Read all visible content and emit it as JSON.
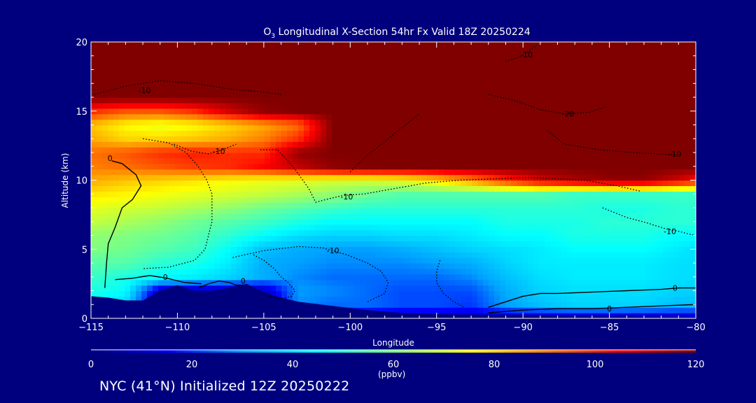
{
  "chart_data": {
    "type": "heatmap",
    "title": {
      "prefix": "O",
      "subscript": "3",
      "rest": " Longitudinal X-Section 54hr  Fx Valid 18Z 20250224"
    },
    "xlabel": "Longitude",
    "ylabel": "Altitude (km)",
    "xlim": [
      -115,
      -80
    ],
    "ylim": [
      0,
      20
    ],
    "x_ticks": [
      -115,
      -110,
      -105,
      -100,
      -95,
      -90,
      -85,
      -80
    ],
    "x_tick_labels": [
      "−115",
      "−110",
      "−105",
      "−100",
      "−95",
      "−90",
      "−85",
      "−80"
    ],
    "y_ticks": [
      0,
      5,
      10,
      15,
      20
    ],
    "y_tick_labels": [
      "0",
      "5",
      "10",
      "15",
      "20"
    ],
    "colorbar": {
      "min": 0,
      "max": 120,
      "ticks": [
        0,
        20,
        40,
        60,
        80,
        100,
        120
      ],
      "tick_labels": [
        "0",
        "20",
        "40",
        "60",
        "80",
        "100",
        "120"
      ],
      "units": "(ppbv)",
      "colormap": [
        "#00007f",
        "#0000ff",
        "#00a0ff",
        "#00ffff",
        "#80ff80",
        "#ffff00",
        "#ff8000",
        "#ff0000",
        "#800000"
      ]
    },
    "field": {
      "description_units": "ppbv",
      "x": [
        -115,
        -113,
        -111,
        -109,
        -107,
        -105,
        -103,
        -101,
        -99,
        -97,
        -95,
        -93,
        -91,
        -89,
        -87,
        -85,
        -83,
        -81,
        -80
      ],
      "y": [
        0,
        1,
        2,
        3,
        4,
        5,
        6,
        7,
        8,
        9,
        10,
        11,
        12,
        13,
        14,
        15,
        16,
        17,
        18,
        19,
        20
      ],
      "note_rows": "values[j][i] for altitude y[j] and longitude x[i]",
      "values": [
        [
          5,
          5,
          5,
          5,
          5,
          5,
          5,
          5,
          5,
          5,
          5,
          5,
          5,
          5,
          5,
          5,
          5,
          5,
          5
        ],
        [
          45,
          38,
          5,
          5,
          5,
          5,
          28,
          25,
          25,
          22,
          22,
          20,
          30,
          35,
          38,
          38,
          38,
          35,
          35
        ],
        [
          48,
          45,
          5,
          5,
          5,
          5,
          30,
          28,
          25,
          22,
          22,
          22,
          32,
          38,
          40,
          40,
          40,
          38,
          38
        ],
        [
          52,
          48,
          45,
          42,
          38,
          32,
          28,
          25,
          25,
          25,
          25,
          28,
          35,
          40,
          42,
          42,
          42,
          40,
          40
        ],
        [
          55,
          55,
          50,
          48,
          42,
          32,
          30,
          28,
          28,
          28,
          30,
          32,
          38,
          42,
          42,
          42,
          42,
          40,
          40
        ],
        [
          60,
          58,
          55,
          52,
          45,
          35,
          32,
          30,
          30,
          32,
          35,
          38,
          40,
          42,
          45,
          45,
          45,
          42,
          40
        ],
        [
          62,
          60,
          58,
          55,
          50,
          45,
          40,
          38,
          38,
          40,
          40,
          42,
          45,
          45,
          48,
          48,
          48,
          45,
          45
        ],
        [
          68,
          65,
          62,
          58,
          55,
          52,
          48,
          45,
          45,
          45,
          45,
          45,
          48,
          48,
          48,
          50,
          50,
          50,
          50
        ],
        [
          72,
          70,
          68,
          65,
          62,
          58,
          55,
          52,
          50,
          50,
          50,
          50,
          50,
          50,
          50,
          48,
          48,
          50,
          50
        ],
        [
          78,
          76,
          74,
          72,
          70,
          68,
          65,
          62,
          58,
          55,
          55,
          55,
          55,
          55,
          52,
          52,
          52,
          52,
          52
        ],
        [
          85,
          82,
          80,
          78,
          75,
          73,
          72,
          70,
          70,
          72,
          78,
          88,
          100,
          110,
          115,
          118,
          118,
          110,
          105
        ],
        [
          90,
          92,
          95,
          98,
          100,
          105,
          112,
          118,
          120,
          120,
          120,
          120,
          120,
          120,
          120,
          120,
          120,
          120,
          120
        ],
        [
          92,
          95,
          100,
          102,
          100,
          100,
          118,
          120,
          120,
          120,
          120,
          120,
          120,
          120,
          120,
          120,
          120,
          120,
          120
        ],
        [
          85,
          80,
          80,
          82,
          85,
          90,
          100,
          120,
          120,
          120,
          120,
          120,
          120,
          120,
          120,
          120,
          120,
          120,
          120
        ],
        [
          82,
          75,
          72,
          75,
          80,
          85,
          92,
          120,
          120,
          120,
          120,
          120,
          120,
          120,
          120,
          120,
          120,
          120,
          120
        ],
        [
          100,
          95,
          95,
          100,
          110,
          118,
          120,
          120,
          120,
          120,
          120,
          120,
          120,
          120,
          120,
          120,
          120,
          120,
          120
        ],
        [
          120,
          120,
          120,
          120,
          120,
          120,
          120,
          120,
          120,
          120,
          120,
          120,
          120,
          120,
          120,
          120,
          120,
          120,
          120
        ],
        [
          120,
          120,
          120,
          120,
          120,
          120,
          120,
          120,
          120,
          120,
          120,
          120,
          120,
          120,
          120,
          120,
          120,
          120,
          120
        ],
        [
          120,
          120,
          120,
          120,
          120,
          120,
          120,
          120,
          120,
          120,
          120,
          120,
          120,
          120,
          120,
          120,
          120,
          120,
          120
        ],
        [
          120,
          120,
          120,
          120,
          120,
          120,
          120,
          120,
          120,
          120,
          120,
          120,
          120,
          120,
          120,
          120,
          120,
          120,
          120
        ],
        [
          120,
          120,
          120,
          120,
          120,
          120,
          120,
          120,
          120,
          120,
          120,
          120,
          120,
          120,
          120,
          120,
          120,
          120,
          120
        ]
      ]
    },
    "terrain": {
      "x": [
        -115,
        -114,
        -113,
        -112,
        -111,
        -110,
        -109.5,
        -109,
        -108,
        -107,
        -106,
        -105,
        -104,
        -103,
        -101,
        -99,
        -97,
        -95,
        -90,
        -85,
        -80
      ],
      "altitude_km": [
        1.6,
        1.5,
        1.3,
        1.3,
        2.0,
        2.4,
        2.2,
        2.0,
        2.0,
        2.2,
        2.5,
        1.9,
        1.5,
        1.2,
        0.9,
        0.6,
        0.4,
        0.3,
        0.2,
        0.15,
        0.1
      ]
    },
    "contours": [
      {
        "label": "0",
        "style": "solid",
        "x": [
          -113.8,
          -113.2,
          -112.4,
          -112.1,
          -112.6,
          -113.2,
          -113.6,
          -114.0,
          -114.1,
          -114.2
        ],
        "y": [
          11.4,
          11.2,
          10.4,
          9.6,
          8.6,
          8.0,
          6.6,
          5.4,
          4.0,
          2.2
        ],
        "label_x": -113.9,
        "label_y": 11.6
      },
      {
        "label": "0",
        "style": "solid",
        "x": [
          -113.6,
          -112.6,
          -111.6,
          -110.6,
          -109.6,
          -108.6
        ],
        "y": [
          2.8,
          2.9,
          3.1,
          2.9,
          2.6,
          2.5
        ],
        "label_x": -110.7,
        "label_y": 3.0
      },
      {
        "label": "0",
        "style": "solid",
        "x": [
          -92,
          -91,
          -90,
          -89,
          -88,
          -86,
          -84,
          -82,
          -81,
          -80
        ],
        "y": [
          0.8,
          1.2,
          1.6,
          1.8,
          1.8,
          1.9,
          2.0,
          2.1,
          2.2,
          2.2
        ],
        "label_x": -81.2,
        "label_y": 2.2
      },
      {
        "label": "0",
        "style": "solid",
        "x": [
          -92,
          -90,
          -88,
          -86,
          -84,
          -82,
          -80
        ],
        "y": [
          0.4,
          0.6,
          0.7,
          0.7,
          0.8,
          0.9,
          1.0
        ],
        "label_x": -85.0,
        "label_y": 0.7
      },
      {
        "label": "0",
        "style": "solid",
        "x": [
          -108.8,
          -108.2,
          -107.6,
          -107.0,
          -106.6,
          -106.2
        ],
        "y": [
          2.2,
          2.5,
          2.7,
          2.6,
          2.4,
          2.4
        ],
        "label_x": -106.2,
        "label_y": 2.7
      },
      {
        "label": "-10",
        "style": "dotted",
        "x": [
          -105.2,
          -104.2,
          -103.2,
          -102.4,
          -102.0,
          -101.4,
          -100.4,
          -99.2,
          -97.4,
          -95.6,
          -93.6,
          -91.6,
          -89.6,
          -88.0,
          -86.4,
          -84.6,
          -83.2
        ],
        "y": [
          12.2,
          12.2,
          10.8,
          9.4,
          8.4,
          8.6,
          8.9,
          9.0,
          9.4,
          9.8,
          10.0,
          10.1,
          10.2,
          10.1,
          10.0,
          9.6,
          9.2
        ],
        "label_x": -100.2,
        "label_y": 8.8
      },
      {
        "label": "-10",
        "style": "dotted",
        "x": [
          -106.8,
          -105.0,
          -103.0,
          -101.6,
          -100.2,
          -99.0,
          -98.2,
          -97.8,
          -98.0,
          -99.0
        ],
        "y": [
          4.4,
          4.9,
          5.2,
          5.1,
          4.6,
          4.0,
          3.4,
          2.6,
          1.8,
          1.2
        ],
        "label_x": -101.0,
        "label_y": 4.9
      },
      {
        "label": "-10",
        "style": "dotted",
        "x": [
          -85.4,
          -84.0,
          -82.8,
          -81.8,
          -81.0,
          -80.4,
          -80.0
        ],
        "y": [
          8.0,
          7.3,
          6.9,
          6.5,
          6.3,
          6.1,
          6.0
        ],
        "label_x": -81.5,
        "label_y": 6.3
      },
      {
        "label": "-10",
        "style": "dotted",
        "x": [
          -88.6,
          -87.6,
          -85.6,
          -83.6,
          -82.0,
          -81.0
        ],
        "y": [
          13.6,
          12.6,
          12.2,
          12.0,
          11.9,
          11.8
        ],
        "label_x": -81.2,
        "label_y": 11.9
      },
      {
        "label": "-20",
        "style": "dotted",
        "x": [
          -92.0,
          -90.6,
          -89.0,
          -87.6,
          -86.2,
          -85.2
        ],
        "y": [
          16.2,
          15.8,
          15.1,
          14.8,
          14.9,
          15.3
        ],
        "label_x": -87.4,
        "label_y": 14.8
      },
      {
        "label": "-10",
        "style": "dotted",
        "x": [
          -110.2,
          -109.2,
          -108.2,
          -107.4,
          -106.6
        ],
        "y": [
          12.6,
          12.1,
          11.9,
          12.2,
          12.6
        ],
        "label_x": -107.6,
        "label_y": 12.1
      },
      {
        "label": "-10",
        "style": "dotted",
        "x": [
          -114.8,
          -113.0,
          -111.0,
          -109.0,
          -107.0,
          -105.2,
          -104.0
        ],
        "y": [
          16.2,
          16.8,
          17.2,
          17.0,
          16.6,
          16.4,
          16.2
        ],
        "label_x": -111.9,
        "label_y": 16.5
      },
      {
        "label": "-10",
        "style": "dotted",
        "x": [
          -91.0,
          -90.0,
          -89.2
        ],
        "y": [
          18.6,
          19.0,
          19.8
        ],
        "label_x": -89.8,
        "label_y": 19.1
      },
      {
        "label": "",
        "style": "dotted",
        "x": [
          -112.0,
          -110.5,
          -109.5,
          -108.8,
          -108.3,
          -108.0,
          -108.0,
          -108.4,
          -109.0,
          -110.5,
          -112.0
        ],
        "y": [
          13.0,
          12.7,
          12.0,
          11.0,
          10.0,
          9.0,
          7.0,
          5.0,
          4.2,
          3.7,
          3.6
        ]
      },
      {
        "label": "",
        "style": "dotted",
        "x": [
          -105.6,
          -105.0,
          -104.4,
          -104.0,
          -103.6,
          -103.2,
          -103.4,
          -104.0,
          -104.8,
          -105.2
        ],
        "y": [
          4.6,
          4.2,
          3.6,
          3.0,
          2.6,
          2.0,
          1.6,
          1.4,
          1.6,
          2.0
        ]
      },
      {
        "label": "",
        "style": "dotted",
        "x": [
          -94.8,
          -95.0,
          -95.0,
          -94.6,
          -94.0,
          -93.4
        ],
        "y": [
          4.2,
          3.4,
          2.6,
          1.8,
          1.2,
          0.8
        ]
      },
      {
        "label": "",
        "style": "dotted",
        "x": [
          -100.0,
          -99.0,
          -98.0,
          -97.6,
          -97.0,
          -96.0
        ],
        "y": [
          10.6,
          11.8,
          12.8,
          13.2,
          13.8,
          14.8
        ]
      }
    ]
  },
  "footer_text": "NYC (41°N) Initialized 12Z 20250222"
}
